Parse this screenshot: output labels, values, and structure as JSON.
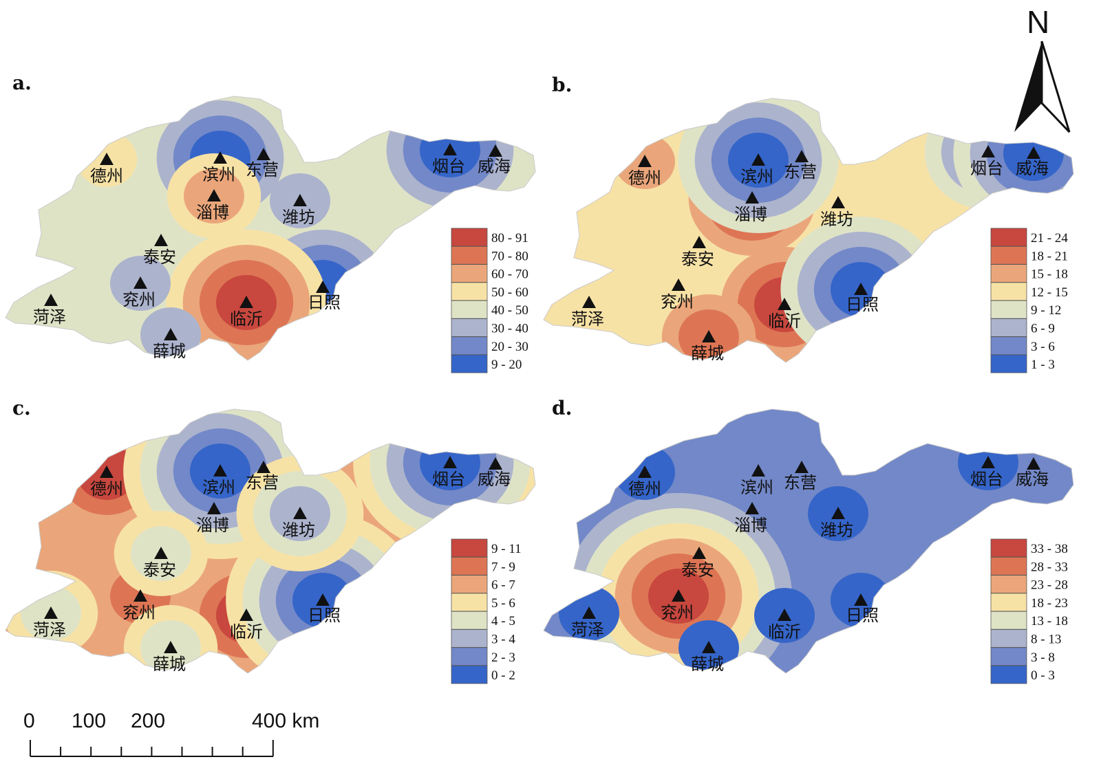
{
  "north_label": "N",
  "scale_bar": {
    "ticks": [
      "0",
      "100",
      "200",
      "400 km"
    ]
  },
  "cities": {
    "dezhou": "德州",
    "binzhou": "滨州",
    "dongying": "东营",
    "yantai": "烟台",
    "weihai": "威海",
    "zibo": "淄博",
    "weifang": "潍坊",
    "taian": "泰安",
    "yanzhou": "兖州",
    "heze": "菏泽",
    "linyi": "临沂",
    "rizhao": "日照",
    "xuecheng": "薛城"
  },
  "palette": [
    "#3565c9",
    "#7288c8",
    "#acb3cd",
    "#dfe3c6",
    "#f7e2a6",
    "#eaa67a",
    "#dd7554",
    "#c8473e"
  ],
  "panels": [
    {
      "id": "a",
      "label": "a.",
      "classes": [
        "80 - 91",
        "70 - 80",
        "60 - 70",
        "50 - 60",
        "40 - 50",
        "30 - 40",
        "20 - 30",
        "9 - 20"
      ]
    },
    {
      "id": "b",
      "label": "b.",
      "classes": [
        "21 - 24",
        "18 - 21",
        "15 - 18",
        "12 - 15",
        "9 - 12",
        "6 - 9",
        "3 - 6",
        "1 - 3"
      ]
    },
    {
      "id": "c",
      "label": "c.",
      "classes": [
        "9 - 11",
        "7 - 9",
        "6 - 7",
        "5 - 6",
        "4 - 5",
        "3 - 4",
        "2 - 3",
        "0 - 2"
      ]
    },
    {
      "id": "d",
      "label": "d.",
      "classes": [
        "33 - 38",
        "28 - 33",
        "23 - 28",
        "18 - 23",
        "13 - 18",
        "8 - 13",
        "3 - 8",
        "0 - 3"
      ]
    }
  ],
  "surface_levels": {
    "a": {
      "background": 3,
      "blobs": [
        {
          "at": "binzhou",
          "level": 0
        },
        {
          "at": "yantai",
          "level": 0
        },
        {
          "at": "rizhao",
          "level": 0
        },
        {
          "at": "linyi",
          "level": 7
        },
        {
          "at": "zibo",
          "level": 5
        },
        {
          "at": "yanzhou",
          "level": 2
        },
        {
          "at": "xuecheng",
          "level": 2
        },
        {
          "at": "weifang",
          "level": 2
        },
        {
          "at": "dezhou",
          "level": 4
        }
      ]
    },
    "b": {
      "background": 4,
      "blobs": [
        {
          "at": "linyi",
          "level": 7
        },
        {
          "at": "zibo",
          "level": 7
        },
        {
          "at": "xuecheng",
          "level": 6
        },
        {
          "at": "dezhou",
          "level": 5
        },
        {
          "at": "binzhou",
          "level": 0
        },
        {
          "at": "rizhao",
          "level": 0
        },
        {
          "at": "yantai",
          "level": 1
        },
        {
          "at": "weihai",
          "level": 0
        },
        {
          "at": "weifang",
          "level": 4
        }
      ]
    },
    "c": {
      "background": 5,
      "blobs": [
        {
          "at": "dezhou",
          "level": 7
        },
        {
          "at": "linyi",
          "level": 7
        },
        {
          "at": "zibo",
          "level": 7
        },
        {
          "at": "yanzhou",
          "level": 6
        },
        {
          "at": "binzhou",
          "level": 0
        },
        {
          "at": "yantai",
          "level": 0
        },
        {
          "at": "rizhao",
          "level": 0
        },
        {
          "at": "weifang",
          "level": 2
        },
        {
          "at": "taian",
          "level": 3
        },
        {
          "at": "heze",
          "level": 3
        },
        {
          "at": "xuecheng",
          "level": 3
        }
      ]
    },
    "d": {
      "background": 1,
      "blobs": [
        {
          "at": "yanzhou",
          "level": 7
        },
        {
          "at": "heze",
          "level": 0
        },
        {
          "at": "xuecheng",
          "level": 0
        },
        {
          "at": "dezhou",
          "level": 0
        },
        {
          "at": "weifang",
          "level": 0
        },
        {
          "at": "linyi",
          "level": 0
        },
        {
          "at": "yantai",
          "level": 0
        },
        {
          "at": "rizhao",
          "level": 0
        }
      ]
    }
  }
}
